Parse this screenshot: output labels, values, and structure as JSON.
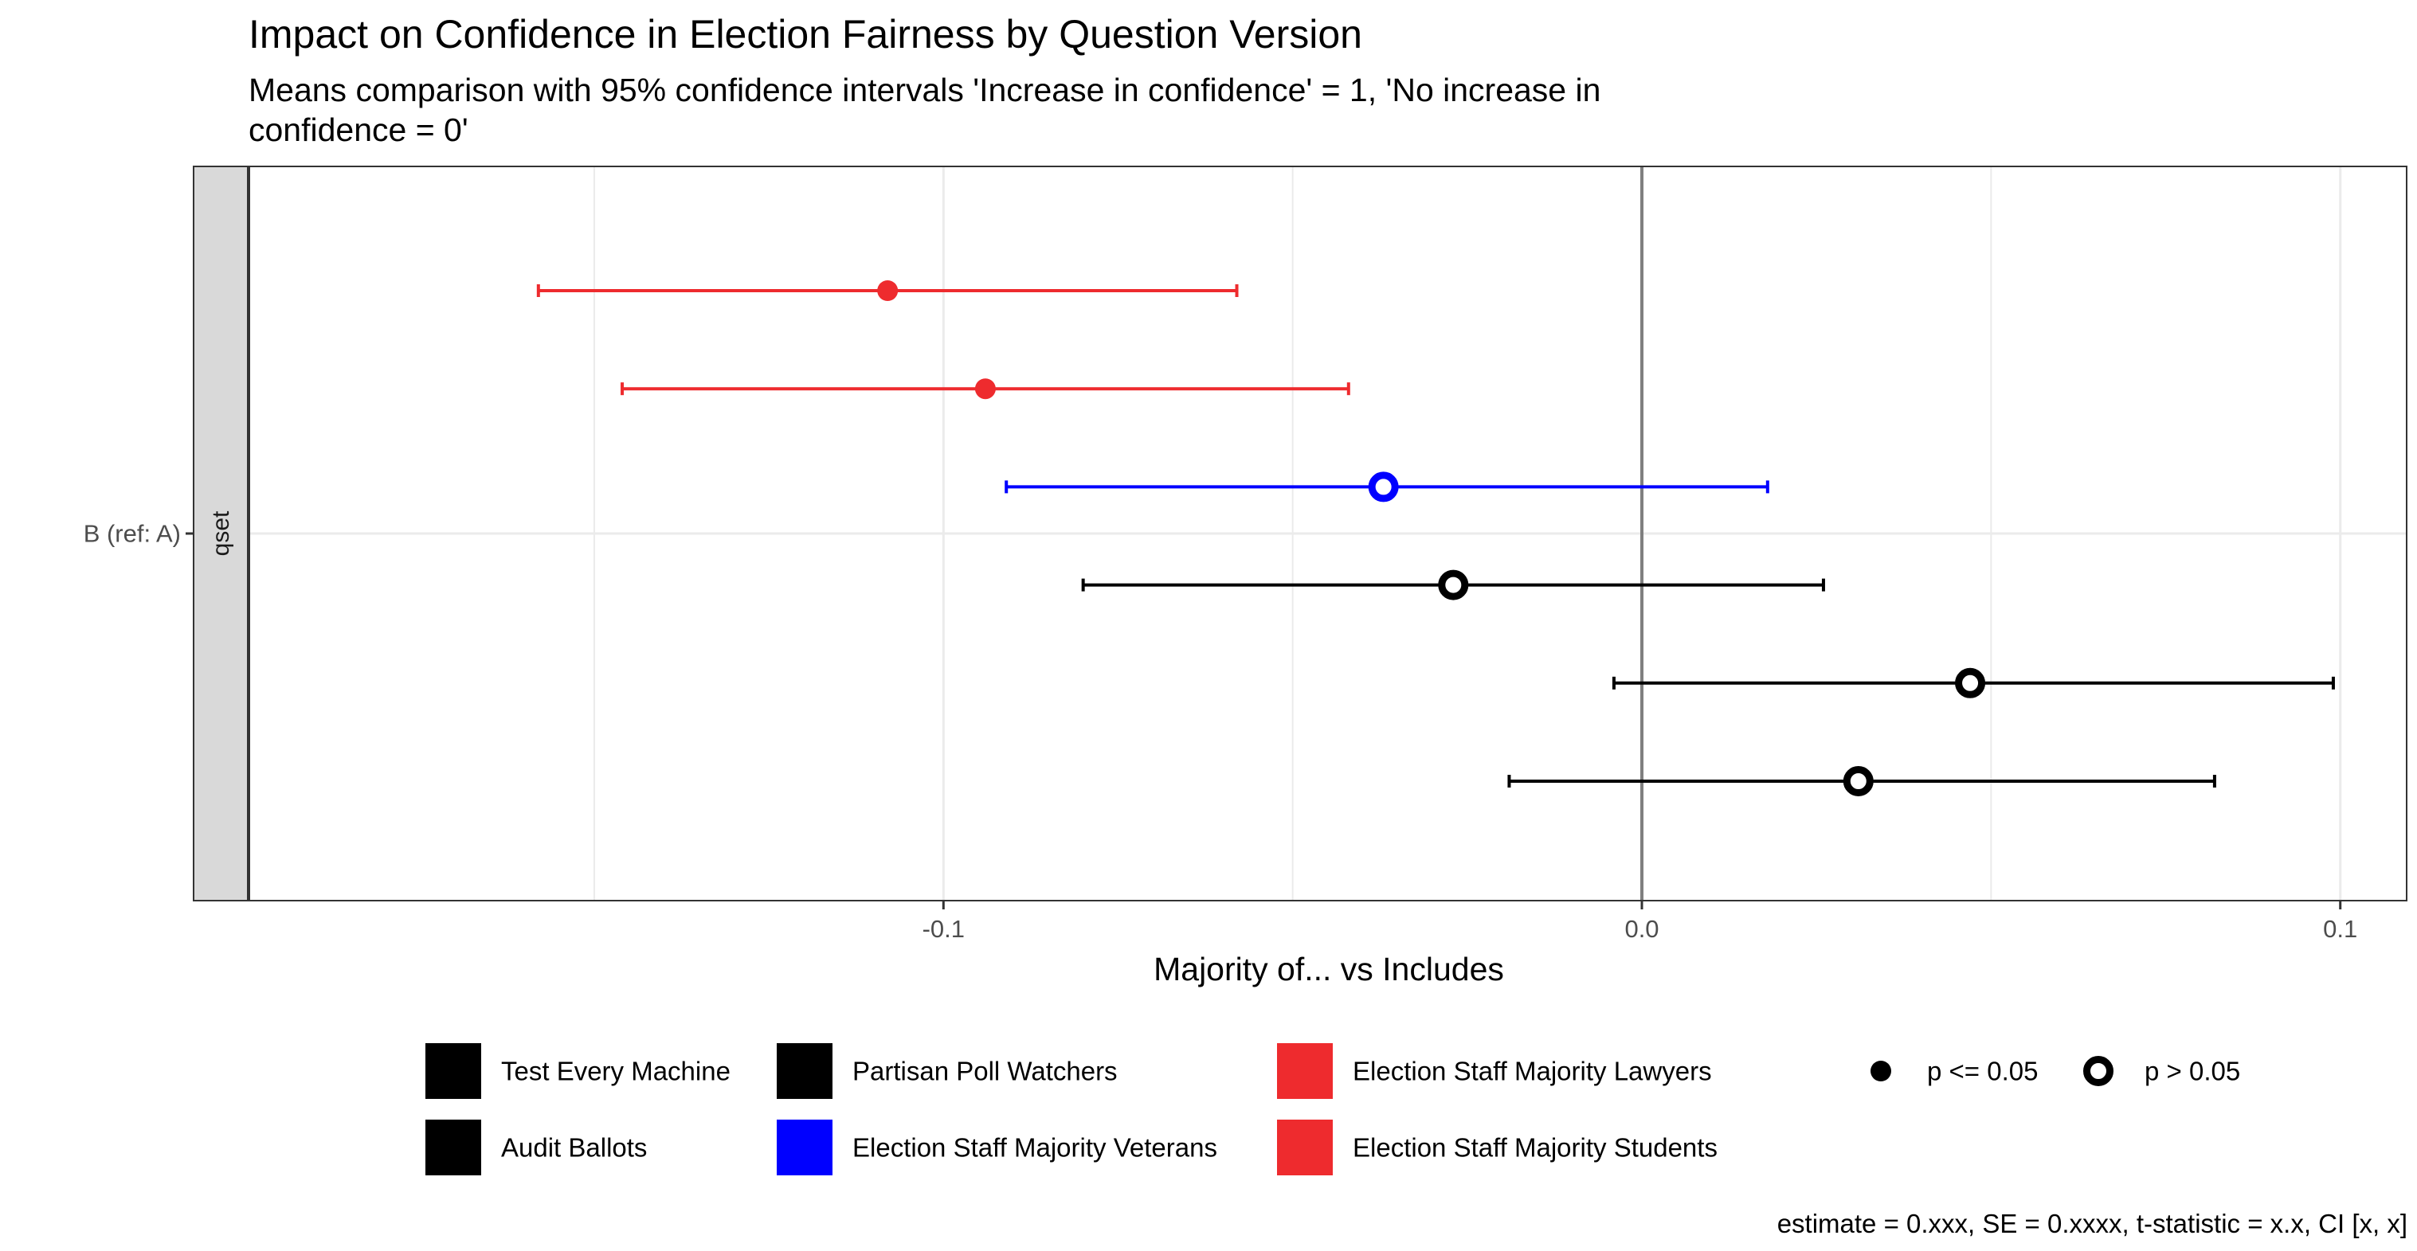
{
  "chart_data": {
    "type": "scatter",
    "title": "Impact on Confidence in Election Fairness by Question Version",
    "subtitle_lines": [
      "Means comparison with 95% confidence intervals 'Increase in confidence' = 1, 'No increase in",
      "confidence = 0'"
    ],
    "xlabel": "Majority of... vs Includes",
    "ylabel": "",
    "facet_label": "qset",
    "y_category": "B (ref: A)",
    "xlim": [
      -0.1995,
      0.1095
    ],
    "x_ticks": [
      -0.1,
      0.0,
      0.1
    ],
    "x_tick_labels": [
      "-0.1",
      "0.0",
      "0.1"
    ],
    "minor_gridlines": [
      -0.15,
      -0.05,
      0.05
    ],
    "grid": true,
    "zero_reference_line": 0,
    "legend_position": "bottom",
    "series": [
      {
        "name": "Election Staff Majority Lawyers",
        "color": "#ee2b2e",
        "estimate": -0.108,
        "ci": [
          -0.158,
          -0.058
        ],
        "significant": true
      },
      {
        "name": "Election Staff Majority Students",
        "color": "#ee2b2e",
        "estimate": -0.094,
        "ci": [
          -0.146,
          -0.042
        ],
        "significant": true
      },
      {
        "name": "Election Staff Majority Veterans",
        "color": "#0000ff",
        "estimate": -0.037,
        "ci": [
          -0.091,
          0.018
        ],
        "significant": false
      },
      {
        "name": "Partisan Poll Watchers",
        "color": "#000000",
        "estimate": -0.027,
        "ci": [
          -0.08,
          0.026
        ],
        "significant": false
      },
      {
        "name": "Test Every Machine",
        "color": "#000000",
        "estimate": 0.047,
        "ci": [
          -0.004,
          0.099
        ],
        "significant": false
      },
      {
        "name": "Audit Ballots",
        "color": "#000000",
        "estimate": 0.031,
        "ci": [
          -0.019,
          0.082
        ],
        "significant": false
      }
    ],
    "legend_colors": {
      "columns": [
        [
          "Test Every Machine",
          "Audit Ballots"
        ],
        [
          "Partisan Poll Watchers",
          "Election Staff Majority Veterans"
        ],
        [
          "Election Staff Majority Lawyers",
          "Election Staff Majority Students"
        ]
      ]
    },
    "legend_shapes": [
      {
        "label": "p <= 0.05",
        "filled": true
      },
      {
        "label": "p > 0.05",
        "filled": false
      }
    ],
    "caption": "estimate = 0.xxx, SE = 0.xxxx, t-statistic = x.x, CI [x, x]"
  }
}
